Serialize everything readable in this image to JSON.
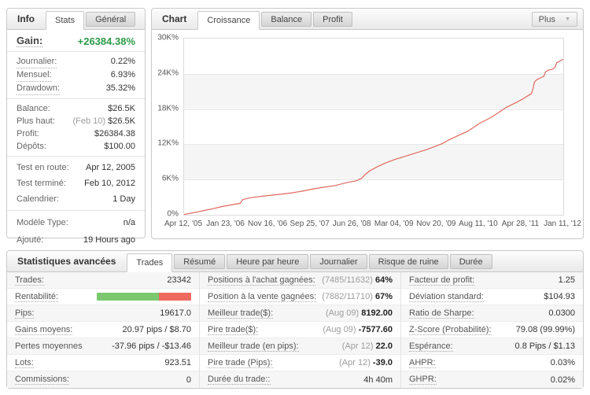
{
  "colors": {
    "gain_green": "#2e9b47",
    "curve_red": "#e0695e",
    "bar_green": "#7bc86f",
    "bar_red": "#ee6a5f"
  },
  "icons": {
    "caret_down": "▼"
  },
  "left_panel": {
    "title": "Info",
    "tabs": {
      "items": [
        "Stats",
        "Général"
      ],
      "active": 0
    },
    "gain": {
      "label": "Gain:",
      "value": "+26384.38%"
    },
    "sections": [
      [
        {
          "label": "Journalier:",
          "value": "0.22%",
          "u": true
        },
        {
          "label": "Mensuel:",
          "value": "6.93%",
          "u": true
        },
        {
          "label": "Drawdown:",
          "value": "35.32%",
          "u": true
        }
      ],
      [
        {
          "label": "Balance:",
          "value": "$26.5K"
        },
        {
          "label": "Plus haut:",
          "prefix": "(Feb 10) ",
          "value": "$26.5K"
        },
        {
          "label": "Profit:",
          "value": "$26384.38",
          "green": true
        },
        {
          "label": "Dépôts:",
          "value": "$100.00"
        }
      ],
      [
        {
          "label": "Test en route:",
          "value": "Apr 12, 2005"
        },
        {
          "label": "Test terminé:",
          "value": "Feb 10, 2012"
        },
        {
          "label": "Calendrier:",
          "value": "1 Day"
        }
      ],
      [
        {
          "label": "Modèle Type:",
          "value": "n/a"
        },
        {
          "label": "Ajouté:",
          "value": "19 Hours ago"
        }
      ]
    ]
  },
  "chart_panel": {
    "title": "Chart",
    "tabs": {
      "items": [
        "Croissance",
        "Balance",
        "Profit"
      ],
      "active": 0
    },
    "more_button": "Plus"
  },
  "chart_data": {
    "type": "line",
    "title": "Croissance",
    "unit": "K%",
    "ylim": [
      0,
      30
    ],
    "y_ticks": [
      "30K%",
      "24K%",
      "18K%",
      "12K%",
      "6K%",
      "0%"
    ],
    "x_labels": [
      "Apr 12, '05",
      "Jan 23, '06",
      "Nov 16, '06",
      "Sep 25, '07",
      "Jun 26, '08",
      "Mar 04, '09",
      "Nov 20, '09",
      "Aug 11, '10",
      "Apr 28, '11",
      "Jan 11, '12"
    ],
    "grid": "horizontal bands alternating white/#f5f5f5, gridlines every 6K%",
    "legend": "none",
    "series": [
      {
        "name": "Croissance",
        "color": "#e0695e",
        "points": [
          [
            0.0,
            0.05
          ],
          [
            0.035,
            0.5
          ],
          [
            0.07,
            0.95
          ],
          [
            0.1,
            1.4
          ],
          [
            0.13,
            1.75
          ],
          [
            0.148,
            1.95
          ],
          [
            0.155,
            2.6
          ],
          [
            0.175,
            2.9
          ],
          [
            0.21,
            3.2
          ],
          [
            0.24,
            3.4
          ],
          [
            0.28,
            3.7
          ],
          [
            0.31,
            4.0
          ],
          [
            0.34,
            4.4
          ],
          [
            0.37,
            4.7
          ],
          [
            0.4,
            5.0
          ],
          [
            0.43,
            5.5
          ],
          [
            0.455,
            5.8
          ],
          [
            0.468,
            6.2
          ],
          [
            0.478,
            6.9
          ],
          [
            0.49,
            7.5
          ],
          [
            0.51,
            8.2
          ],
          [
            0.53,
            8.8
          ],
          [
            0.555,
            9.4
          ],
          [
            0.58,
            9.9
          ],
          [
            0.61,
            10.5
          ],
          [
            0.64,
            11.1
          ],
          [
            0.665,
            11.7
          ],
          [
            0.68,
            12.1
          ],
          [
            0.7,
            12.8
          ],
          [
            0.72,
            13.4
          ],
          [
            0.75,
            14.3
          ],
          [
            0.78,
            15.6
          ],
          [
            0.805,
            16.4
          ],
          [
            0.82,
            17.0
          ],
          [
            0.85,
            18.3
          ],
          [
            0.875,
            19.1
          ],
          [
            0.89,
            19.6
          ],
          [
            0.905,
            20.2
          ],
          [
            0.916,
            20.6
          ],
          [
            0.919,
            21.2
          ],
          [
            0.924,
            22.6
          ],
          [
            0.93,
            23.0
          ],
          [
            0.94,
            23.3
          ],
          [
            0.949,
            23.6
          ],
          [
            0.953,
            24.3
          ],
          [
            0.96,
            24.6
          ],
          [
            0.972,
            24.8
          ],
          [
            0.978,
            25.1
          ],
          [
            0.983,
            25.9
          ],
          [
            0.99,
            26.1
          ],
          [
            1.0,
            26.5
          ]
        ]
      }
    ]
  },
  "bottom_panel": {
    "title": "Statistiques avancées",
    "tabs": {
      "items": [
        "Trades",
        "Résumé",
        "Heure par heure",
        "Journalier",
        "Risque de ruine",
        "Durée"
      ],
      "active": 0
    },
    "columns": [
      [
        {
          "label": "Trades:",
          "value": "23342",
          "u": true
        },
        {
          "label": "Rentabilité:",
          "u": true,
          "bar": {
            "win_pct": 66,
            "loss_pct": 34
          }
        },
        {
          "label": "Pips:",
          "value": "19617.0",
          "u": true
        },
        {
          "label": "Gains moyens:",
          "value": "20.97 pips / $8.70",
          "u": true
        },
        {
          "label": "Pertes moyennes",
          "value": "-37.96 pips / -$13.46"
        },
        {
          "label": "Lots:",
          "value": "923.51",
          "u": true
        },
        {
          "label": "Commissions:",
          "value": "0",
          "u": true
        }
      ],
      [
        {
          "label": "Positions à l'achat gagnées:",
          "prefix": "(7485/11632) ",
          "value": "64%",
          "bold": true,
          "u": true
        },
        {
          "label": "Position à la vente gagnées:",
          "prefix": "(7882/11710) ",
          "value": "67%",
          "bold": true,
          "u": true
        },
        {
          "label": "Meilleur trade($):",
          "prefix": "(Aug 09) ",
          "value": "8192.00",
          "bold": true,
          "u": true
        },
        {
          "label": "Pire trade($):",
          "prefix": "(Aug 09) ",
          "value": "-7577.60",
          "bold": true,
          "u": true
        },
        {
          "label": "Meilleur trade (en pips):",
          "prefix": "(Apr 12) ",
          "value": "22.0",
          "bold": true,
          "u": true
        },
        {
          "label": "Pire trade (Pips):",
          "prefix": "(Apr 12) ",
          "value": "-39.0",
          "bold": true,
          "u": true
        },
        {
          "label": "Durée du trade::",
          "value": "4h 40m",
          "u": true
        }
      ],
      [
        {
          "label": "Facteur de profit:",
          "value": "1.25",
          "u": true
        },
        {
          "label": "Déviation standard:",
          "value": "$104.93",
          "u": true
        },
        {
          "label": "Ratio de Sharpe:",
          "value": "0.0300",
          "u": true
        },
        {
          "label": "Z-Score (Probabilité):",
          "value": "79.08 (99.99%)",
          "u": true
        },
        {
          "label": "Espérance:",
          "value": "0.8 Pips / $1.13",
          "u": true
        },
        {
          "label": "AHPR:",
          "value": "0.03%",
          "u": true
        },
        {
          "label": "GHPR:",
          "value": "0.02%",
          "u": true
        }
      ]
    ]
  }
}
